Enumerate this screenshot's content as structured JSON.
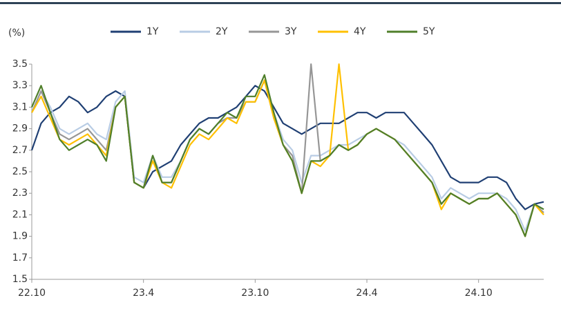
{
  "chart_data": {
    "type": "line",
    "y_label": "(%)",
    "categories": [
      "22.10",
      null,
      null,
      null,
      null,
      null,
      null,
      null,
      null,
      null,
      null,
      null,
      "23.4",
      null,
      null,
      null,
      null,
      null,
      null,
      null,
      null,
      null,
      null,
      null,
      "23.10",
      null,
      null,
      null,
      null,
      null,
      null,
      null,
      null,
      null,
      null,
      null,
      "24.4",
      null,
      null,
      null,
      null,
      null,
      null,
      null,
      null,
      null,
      null,
      null,
      "24.10",
      null,
      null,
      null,
      null,
      null,
      null,
      null
    ],
    "series": [
      {
        "name": "1Y",
        "color": "#1f3f73",
        "values": [
          2.7,
          2.95,
          3.05,
          3.1,
          3.2,
          3.15,
          3.05,
          3.1,
          3.2,
          3.25,
          3.2,
          2.4,
          2.35,
          2.5,
          2.55,
          2.6,
          2.75,
          2.85,
          2.95,
          3.0,
          3.0,
          3.05,
          3.1,
          3.2,
          3.3,
          3.25,
          3.1,
          2.95,
          2.9,
          2.85,
          2.9,
          2.95,
          2.95,
          2.95,
          3.0,
          3.05,
          3.05,
          3.0,
          3.05,
          3.05,
          3.05,
          2.95,
          2.85,
          2.75,
          2.6,
          2.45,
          2.4,
          2.4,
          2.4,
          2.45,
          2.45,
          2.4,
          2.25,
          2.15,
          2.2,
          2.22
        ]
      },
      {
        "name": "2Y",
        "color": "#b8cce4",
        "values": [
          3.05,
          3.25,
          3.1,
          2.9,
          2.85,
          2.9,
          2.95,
          2.85,
          2.8,
          3.15,
          3.25,
          2.45,
          2.4,
          2.65,
          2.45,
          2.45,
          2.6,
          2.8,
          2.9,
          2.85,
          2.95,
          3.0,
          3.0,
          3.15,
          3.15,
          3.35,
          3.05,
          2.8,
          2.7,
          2.4,
          2.65,
          2.65,
          2.7,
          2.75,
          2.75,
          2.8,
          2.85,
          2.9,
          2.85,
          2.8,
          2.75,
          2.65,
          2.55,
          2.45,
          2.25,
          2.35,
          2.3,
          2.25,
          2.3,
          2.3,
          2.3,
          2.25,
          2.15,
          1.95,
          2.2,
          2.15
        ]
      },
      {
        "name": "3Y",
        "color": "#969696",
        "values": [
          3.05,
          3.25,
          3.05,
          2.85,
          2.8,
          2.85,
          2.9,
          2.8,
          2.7,
          3.1,
          3.2,
          2.4,
          2.35,
          2.65,
          2.4,
          2.4,
          2.6,
          2.8,
          2.9,
          2.85,
          2.95,
          3.0,
          3.0,
          3.15,
          3.15,
          3.35,
          3.0,
          2.75,
          2.65,
          2.3,
          3.5,
          2.6,
          2.65,
          2.75,
          2.7,
          2.75,
          2.85,
          2.9,
          2.85,
          2.8,
          2.7,
          2.6,
          2.5,
          2.4,
          2.2,
          2.3,
          2.25,
          2.2,
          2.25,
          2.25,
          2.3,
          2.2,
          2.1,
          1.9,
          2.2,
          2.12
        ]
      },
      {
        "name": "4Y",
        "color": "#ffc000",
        "values": [
          3.05,
          3.2,
          3.0,
          2.8,
          2.75,
          2.8,
          2.85,
          2.75,
          2.65,
          3.1,
          3.2,
          2.4,
          2.35,
          2.6,
          2.4,
          2.35,
          2.55,
          2.75,
          2.85,
          2.8,
          2.9,
          3.0,
          2.95,
          3.15,
          3.15,
          3.35,
          3.0,
          2.75,
          2.6,
          2.3,
          2.6,
          2.55,
          2.65,
          3.5,
          2.7,
          2.75,
          2.85,
          2.9,
          2.85,
          2.8,
          2.7,
          2.6,
          2.5,
          2.4,
          2.15,
          2.3,
          2.25,
          2.2,
          2.25,
          2.25,
          2.3,
          2.2,
          2.1,
          1.9,
          2.2,
          2.1
        ]
      },
      {
        "name": "5Y",
        "color": "#4f7f2a",
        "values": [
          3.1,
          3.3,
          3.05,
          2.8,
          2.7,
          2.75,
          2.8,
          2.75,
          2.6,
          3.1,
          3.2,
          2.4,
          2.35,
          2.65,
          2.4,
          2.4,
          2.6,
          2.8,
          2.9,
          2.85,
          2.95,
          3.05,
          3.0,
          3.2,
          3.2,
          3.4,
          3.05,
          2.75,
          2.6,
          2.3,
          2.6,
          2.6,
          2.65,
          2.75,
          2.7,
          2.75,
          2.85,
          2.9,
          2.85,
          2.8,
          2.7,
          2.6,
          2.5,
          2.4,
          2.2,
          2.3,
          2.25,
          2.2,
          2.25,
          2.25,
          2.3,
          2.2,
          2.1,
          1.9,
          2.2,
          2.15
        ]
      }
    ],
    "ylim": [
      1.5,
      3.5
    ],
    "yticks": [
      {
        "value": 1.5,
        "label": "1.5"
      },
      1.7,
      1.9,
      2.1,
      2.3,
      2.5,
      2.7,
      2.9,
      3.1,
      3.3,
      3.5
    ]
  }
}
